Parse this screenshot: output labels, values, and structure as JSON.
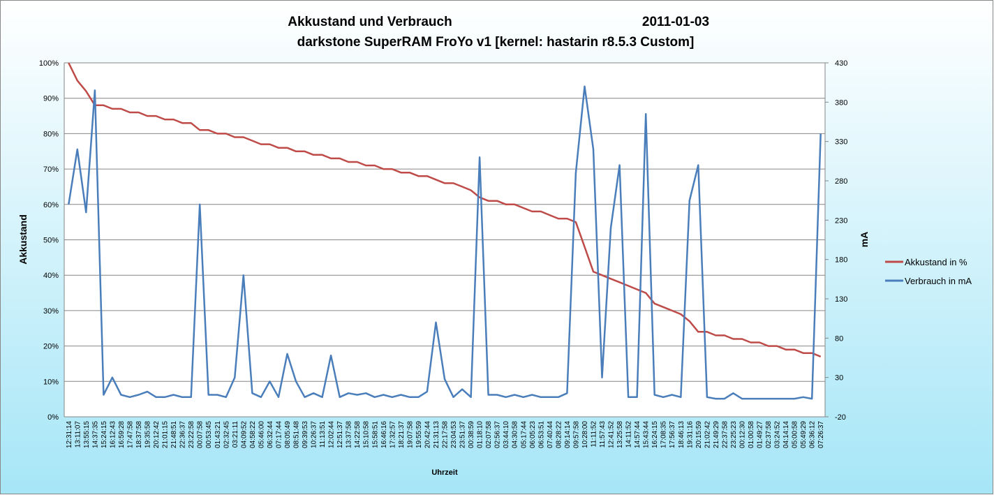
{
  "chart_data": {
    "type": "line",
    "title": "Akkustand und Verbrauch",
    "date": "2011-01-03",
    "subtitle": "darkstone SuperRAM FroYo v1 [kernel: hastarin r8.5.3  Custom]",
    "y_label": "Akkustand",
    "y2_label": "mA",
    "x_label": "Uhrzeit",
    "categories": [
      "12:31:14",
      "13:11:07",
      "13:55:15",
      "14:37:35",
      "15:24:15",
      "16:12:43",
      "16:59:28",
      "17:47:58",
      "18:37:58",
      "19:35:58",
      "20:12:42",
      "21:01:15",
      "21:48:51",
      "22:36:37",
      "23:22:58",
      "00:07:58",
      "00:53:45",
      "01:43:21",
      "02:32:45",
      "03:21:11",
      "04:09:52",
      "04:58:22",
      "05:46:00",
      "06:32:44",
      "07:17:44",
      "08:05:49",
      "08:51:48",
      "09:39:53",
      "10:26:37",
      "11:13:51",
      "12:02:44",
      "12:51:37",
      "13:37:58",
      "14:22:58",
      "15:10:58",
      "15:58:51",
      "16:46:16",
      "17:32:57",
      "18:21:37",
      "19:07:58",
      "19:55:59",
      "20:42:44",
      "21:31:13",
      "22:17:58",
      "23:04:53",
      "23:51:37",
      "00:38:59",
      "01:18:10",
      "02:07:58",
      "02:56:37",
      "03:44:10",
      "04:30:58",
      "05:17:44",
      "06:05:23",
      "06:53:51",
      "07:40:44",
      "08:28:22",
      "09:14:14",
      "09:57:58",
      "10:28:00",
      "11:11:52",
      "11:57:43",
      "12:41:52",
      "13:25:58",
      "14:11:52",
      "14:57:44",
      "15:43:44",
      "16:24:15",
      "17:08:35",
      "17:56:37",
      "18:46:13",
      "19:31:16",
      "20:15:59",
      "21:02:42",
      "21:49:29",
      "22:37:58",
      "23:25:23",
      "00:12:30",
      "01:00:58",
      "01:49:27",
      "02:37:58",
      "03:24:52",
      "04:14:14",
      "05:00:58",
      "05:49:29",
      "06:36:12",
      "07:26:37"
    ],
    "series": [
      {
        "name": "Akkustand in %",
        "color": "#be4b48",
        "values": [
          100,
          95,
          92,
          88,
          88,
          87,
          87,
          86,
          86,
          85,
          85,
          84,
          84,
          83,
          83,
          81,
          81,
          80,
          80,
          79,
          79,
          78,
          77,
          77,
          76,
          76,
          75,
          75,
          74,
          74,
          73,
          73,
          72,
          72,
          71,
          71,
          70,
          70,
          69,
          69,
          68,
          68,
          67,
          66,
          66,
          65,
          64,
          62,
          61,
          61,
          60,
          60,
          59,
          58,
          58,
          57,
          56,
          56,
          55,
          48,
          41,
          40,
          39,
          38,
          37,
          36,
          35,
          32,
          31,
          30,
          29,
          27,
          24,
          24,
          23,
          23,
          22,
          22,
          21,
          21,
          20,
          20,
          19,
          19,
          18,
          18,
          17
        ]
      },
      {
        "name": "Verbrauch in mA",
        "color": "#4a7ebb",
        "axis": "y2",
        "values": [
          250,
          320,
          240,
          395,
          8,
          30,
          8,
          5,
          8,
          12,
          5,
          5,
          8,
          5,
          5,
          250,
          8,
          8,
          5,
          30,
          160,
          10,
          5,
          25,
          5,
          60,
          25,
          5,
          10,
          5,
          58,
          5,
          10,
          8,
          10,
          5,
          8,
          5,
          8,
          5,
          5,
          12,
          100,
          28,
          5,
          15,
          5,
          310,
          8,
          8,
          5,
          8,
          5,
          8,
          5,
          5,
          5,
          10,
          290,
          400,
          320,
          30,
          220,
          300,
          5,
          5,
          365,
          8,
          5,
          8,
          5,
          255,
          300,
          5,
          3,
          3,
          10,
          3,
          3,
          3,
          3,
          3,
          3,
          3,
          5,
          3,
          340
        ]
      }
    ],
    "ylim": [
      0,
      100
    ],
    "yticks": [
      {
        "value": 0,
        "label": "0%"
      },
      {
        "value": 10,
        "label": "10%"
      },
      {
        "value": 20,
        "label": "20%"
      },
      {
        "value": 30,
        "label": "30%"
      },
      {
        "value": 40,
        "label": "40%"
      },
      {
        "value": 50,
        "label": "50%"
      },
      {
        "value": 60,
        "label": "60%"
      },
      {
        "value": 70,
        "label": "70%"
      },
      {
        "value": 80,
        "label": "80%"
      },
      {
        "value": 90,
        "label": "90%"
      },
      {
        "value": 100,
        "label": "100%"
      }
    ],
    "y2lim": [
      -20,
      430
    ],
    "y2ticks": [
      -20,
      30,
      80,
      130,
      180,
      230,
      280,
      330,
      380,
      430
    ],
    "grid": true,
    "legend": "right"
  }
}
